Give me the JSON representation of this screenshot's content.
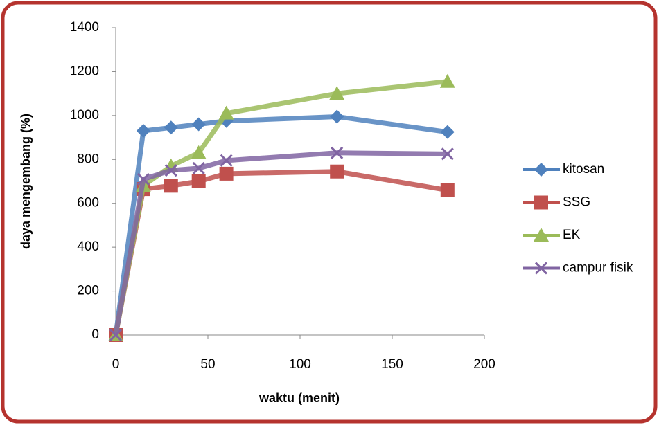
{
  "chart_data": {
    "type": "line",
    "x_label": "waktu (menit)",
    "y_label": "daya mengembang (%)",
    "x": [
      0,
      15,
      30,
      45,
      60,
      120,
      180
    ],
    "series": [
      {
        "name": "kitosan",
        "color": "#4f81bd",
        "marker": "diamond",
        "values": [
          0,
          930,
          945,
          960,
          975,
          995,
          925
        ]
      },
      {
        "name": "SSG",
        "color": "#c0504d",
        "marker": "square",
        "values": [
          0,
          665,
          680,
          700,
          735,
          745,
          660
        ]
      },
      {
        "name": "EK",
        "color": "#9bbb59",
        "marker": "triangle",
        "values": [
          0,
          680,
          770,
          830,
          1010,
          1100,
          1155
        ]
      },
      {
        "name": "campur fisik",
        "color": "#8064a2",
        "marker": "x",
        "values": [
          0,
          710,
          750,
          760,
          795,
          830,
          825
        ]
      }
    ],
    "xlim": [
      0,
      200
    ],
    "xticks": [
      0,
      50,
      100,
      150,
      200
    ],
    "ylim": [
      0,
      1400
    ],
    "yticks": [
      0,
      200,
      400,
      600,
      800,
      1000,
      1200,
      1400
    ],
    "grid": false,
    "legend": "right"
  }
}
